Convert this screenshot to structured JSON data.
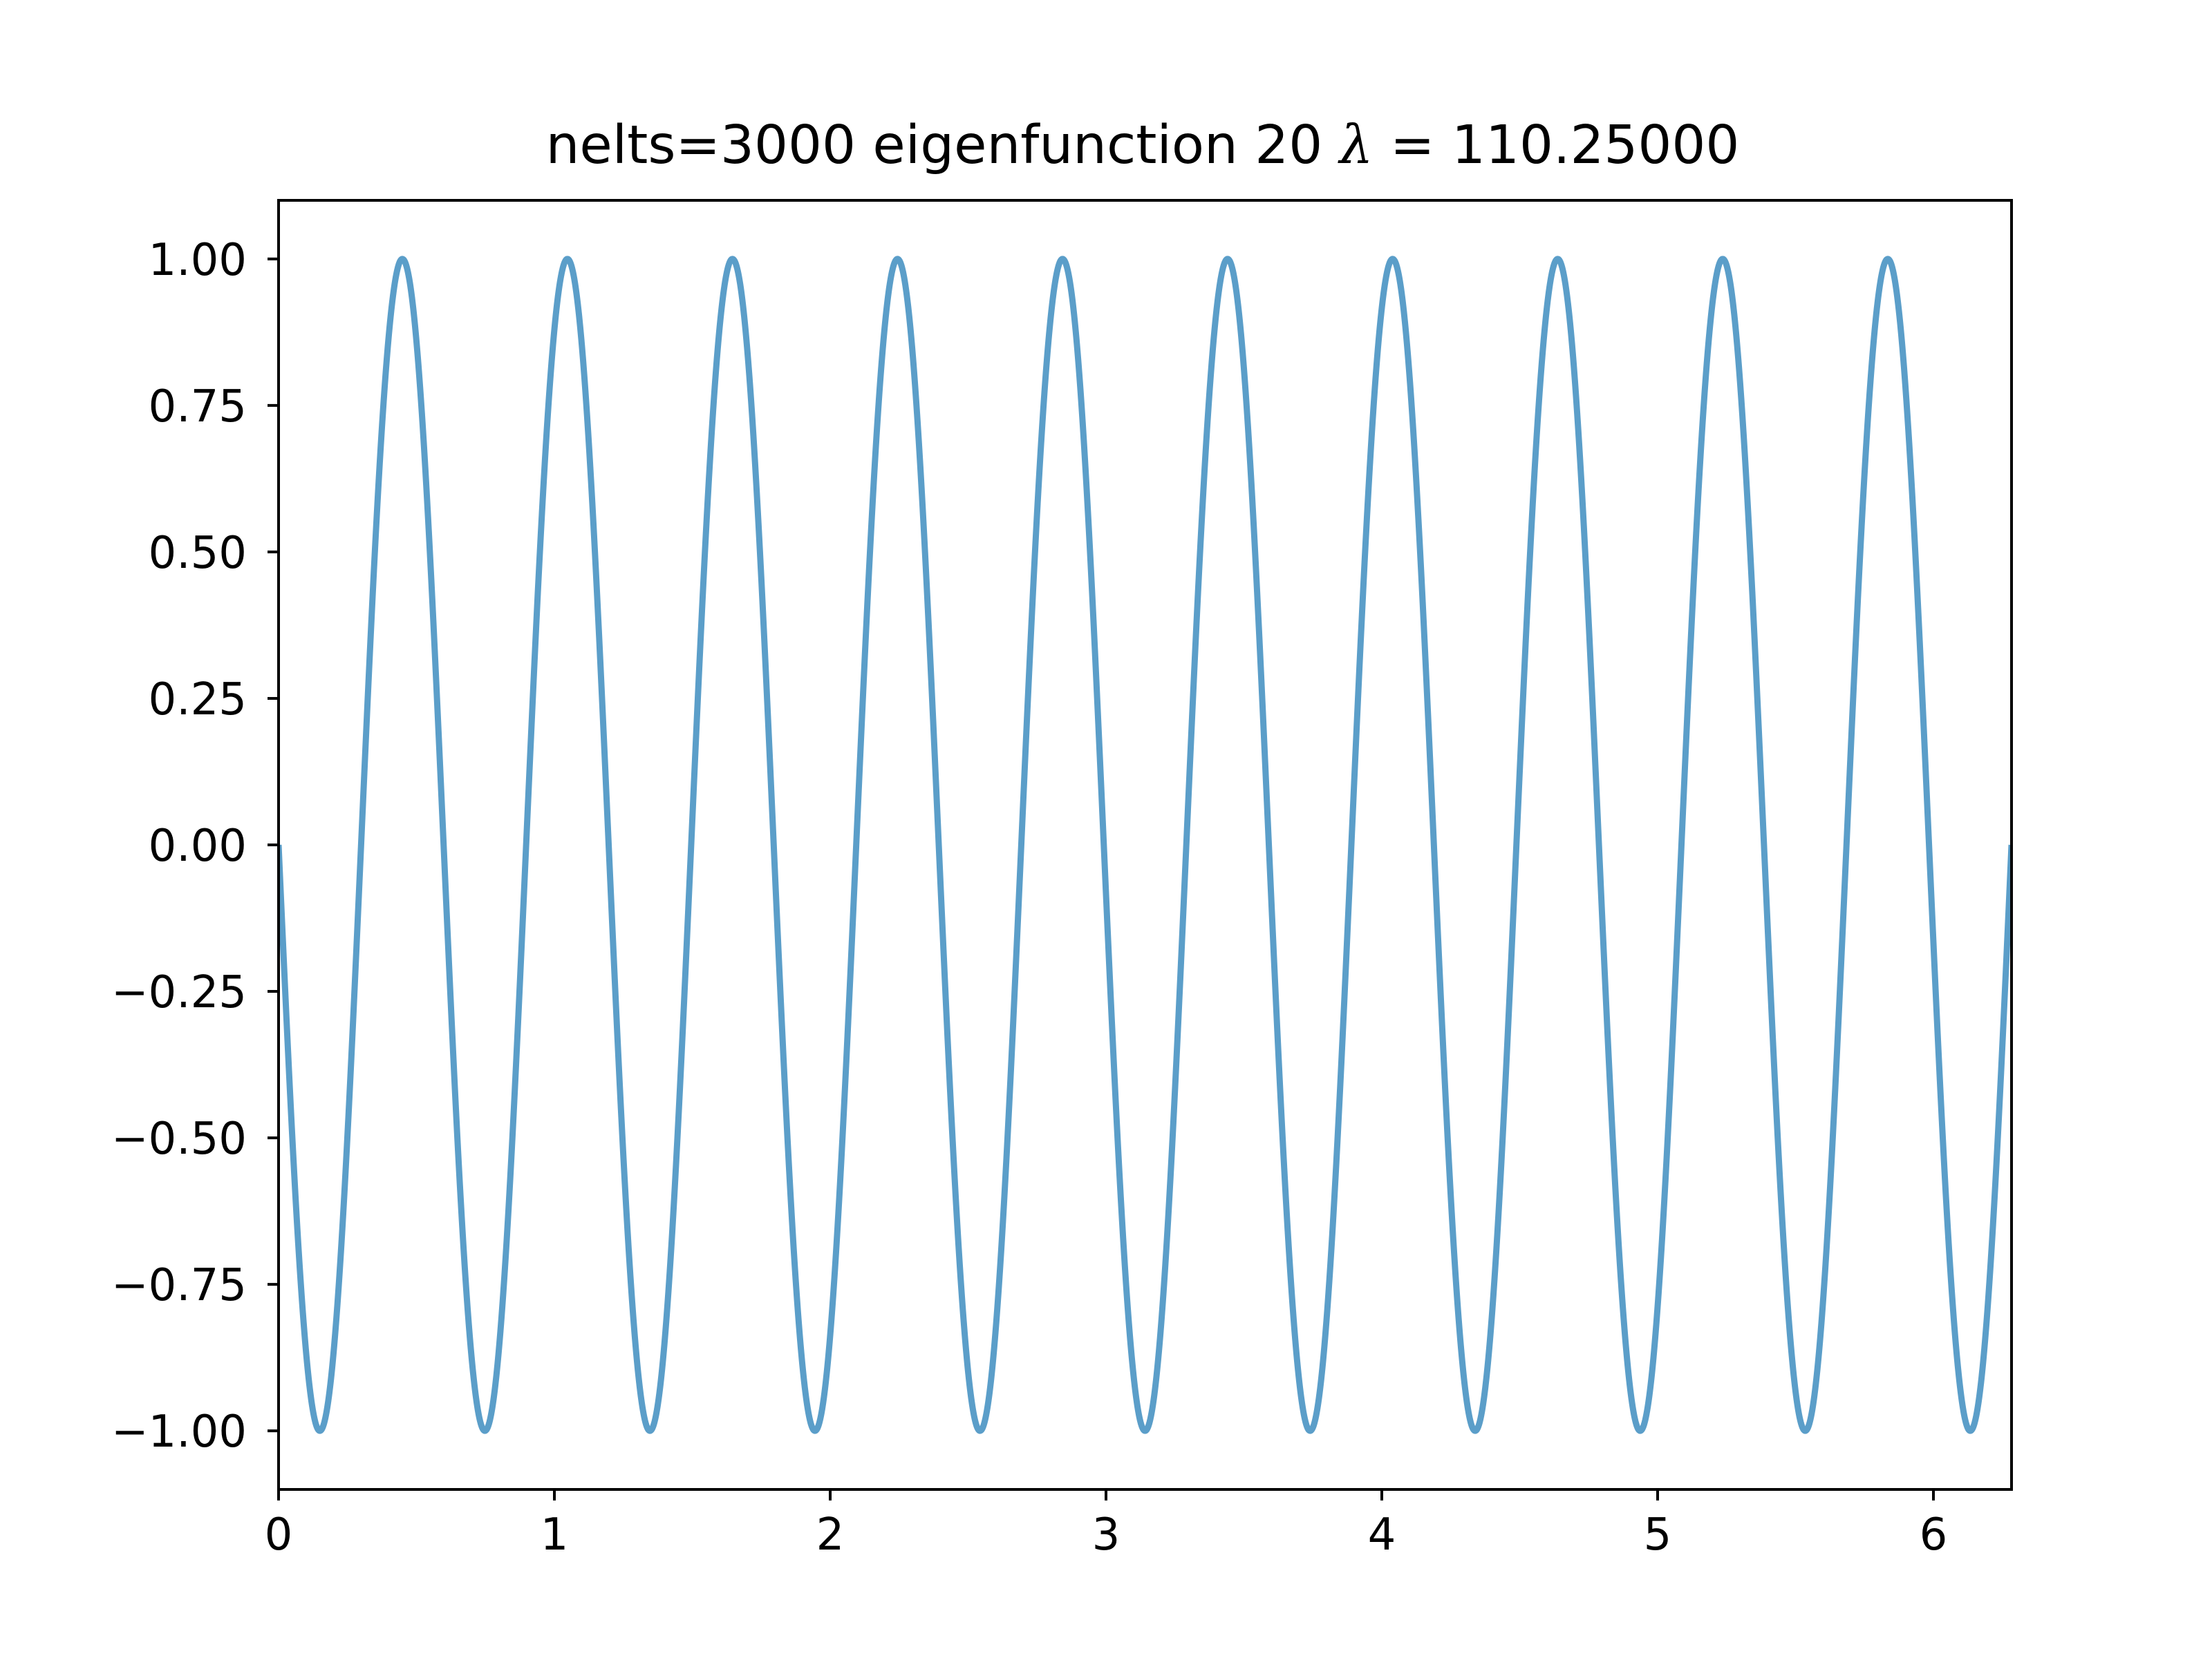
{
  "chart_data": {
    "type": "line",
    "title": "nelts=3000  eigenfunction 20  λ = 110.25000",
    "title_parts": {
      "prefix": "nelts=3000  eigenfunction 20  ",
      "symbol": "λ",
      "suffix": " = 110.25000"
    },
    "xlabel": "",
    "ylabel": "",
    "xlim": [
      0,
      6.283185307179586
    ],
    "ylim": [
      -1.1,
      1.1
    ],
    "xticks": [
      0,
      1,
      2,
      3,
      4,
      5,
      6
    ],
    "xtick_labels": [
      "0",
      "1",
      "2",
      "3",
      "4",
      "5",
      "6"
    ],
    "yticks": [
      1.0,
      0.75,
      0.5,
      0.25,
      0.0,
      -0.25,
      -0.5,
      -0.75,
      -1.0
    ],
    "ytick_labels": [
      "1.00",
      "0.75",
      "0.50",
      "0.25",
      "0.00",
      "−0.25",
      "−0.50",
      "−0.75",
      "−1.00"
    ],
    "grid": false,
    "series": [
      {
        "function": "-sin(10.5 * x)",
        "x_range": [
          0,
          6.283185307179586
        ],
        "frequency": 10.5,
        "amplitude": -1,
        "color": "#5b9ec9"
      }
    ]
  }
}
